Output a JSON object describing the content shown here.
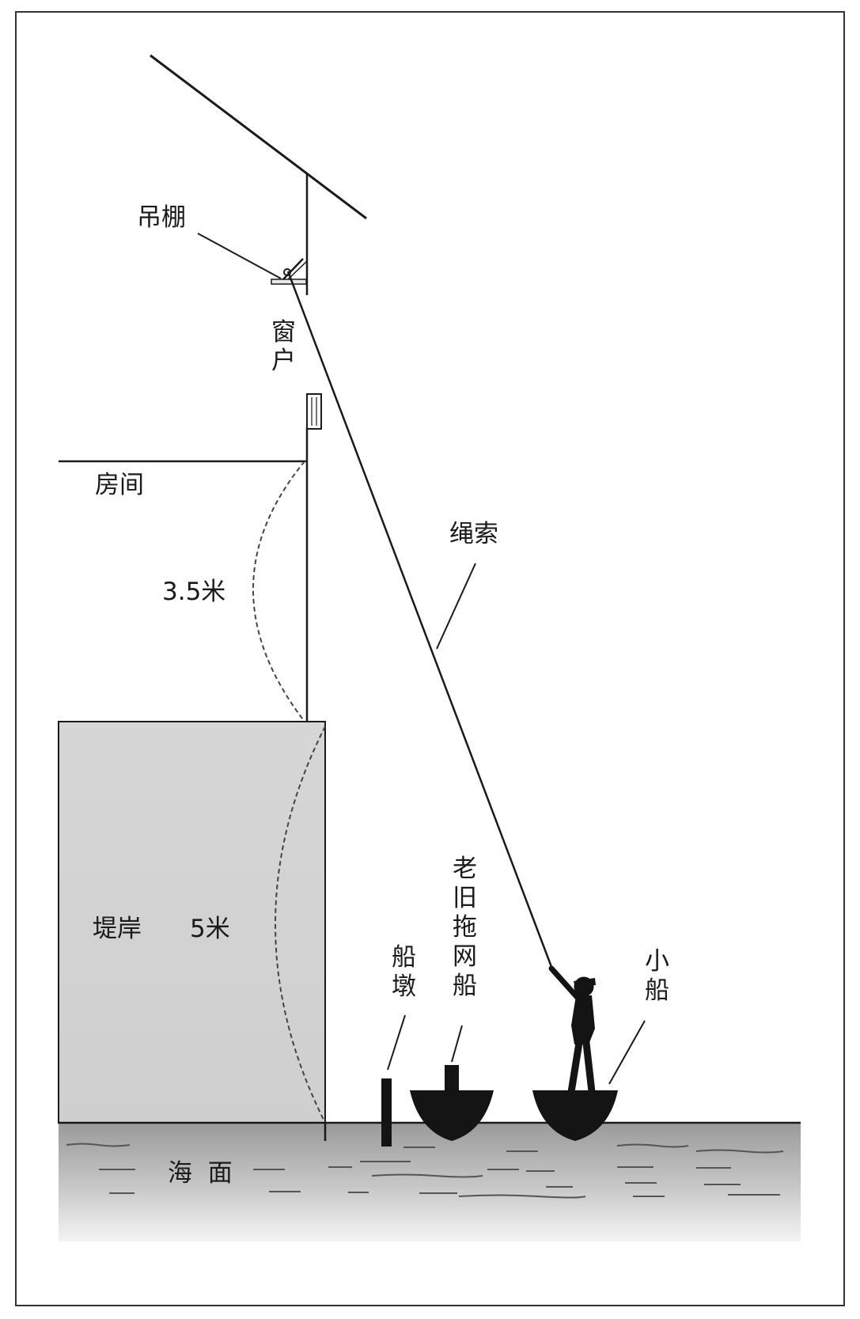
{
  "labels": {
    "hanging_shelf": "吊棚",
    "window": "窗户",
    "room": "房间",
    "room_height": "3.5米",
    "rope": "绳索",
    "embankment": "堤岸",
    "embankment_height": "5米",
    "mooring_post": "船墩",
    "old_trawler": "老旧拖网船",
    "small_boat": "小船",
    "sea_surface": "海  面"
  },
  "colors": {
    "frame": "#333333",
    "line": "#1a1a1a",
    "embankment_fill": "#d2d2d2",
    "sea_top": "#9a9a9a",
    "sea_bottom": "#f2f2f2",
    "silhouette": "#141414"
  }
}
